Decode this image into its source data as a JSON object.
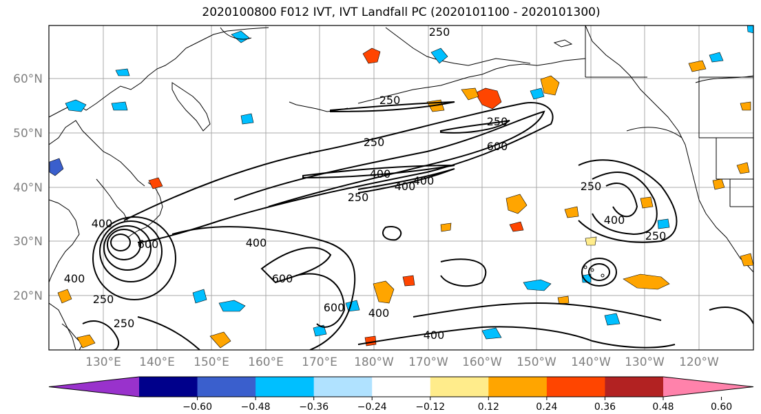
{
  "title": "2020100800 F012 IVT, IVT Landfall PC (2020101100 - 2020101300)",
  "lat_labels": [
    "20°N",
    "30°N",
    "40°N",
    "50°N",
    "60°N"
  ],
  "lon_labels": [
    "130°E",
    "140°E",
    "150°E",
    "160°E",
    "170°E",
    "180°W",
    "170°W",
    "160°W",
    "150°W",
    "140°W",
    "130°W",
    "120°W"
  ],
  "contour_labels": [
    "250",
    "250",
    "250",
    "250",
    "250",
    "400",
    "600",
    "400",
    "400",
    "600",
    "400",
    "600",
    "250",
    "400",
    "250",
    "400",
    "400",
    "250",
    "600",
    "250",
    "400",
    "400"
  ],
  "colorbar": {
    "colors": [
      "#9932cc",
      "#00008b",
      "#3a5fcd",
      "#00bfff",
      "#b0e2ff",
      "#ffffff",
      "#ffec8b",
      "#ffa500",
      "#ff4500",
      "#b22222",
      "#ff82ab"
    ],
    "tick_labels": [
      "−0.60",
      "−0.48",
      "−0.36",
      "−0.24",
      "−0.12",
      "0.12",
      "0.24",
      "0.36",
      "0.48",
      "0.60"
    ]
  }
}
